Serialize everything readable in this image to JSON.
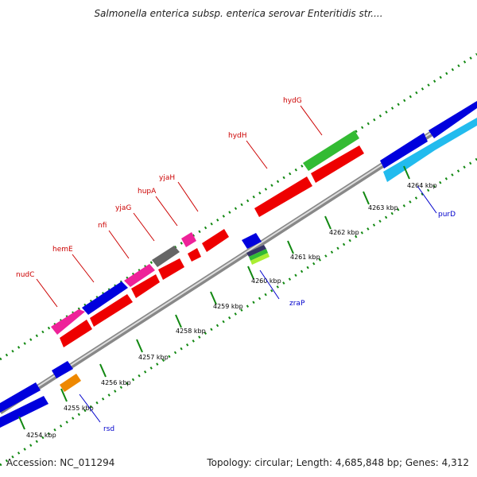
{
  "title": "Salmonella enterica subsp. enterica serovar Enteritidis str....",
  "footer": {
    "accession": "Accession: NC_011294",
    "topology": "Topology: circular; Length: 4,685,848 bp; Genes: 4,312"
  },
  "colors": {
    "forward_red": "#ee0000",
    "dark_blue": "#0000dd",
    "light_blue": "#22bbee",
    "magenta": "#ee2299",
    "green": "#33bb33",
    "orange": "#ee8800",
    "gray": "#666666",
    "tick_green": "#118811",
    "label_red": "#cc0000",
    "label_blue": "#0000cc"
  },
  "kbp_labels": [
    "4254 kbp",
    "4255 kbp",
    "4256 kbp",
    "4257 kbp",
    "4258 kbp",
    "4259 kbp",
    "4260 kbp",
    "4261 kbp",
    "4262 kbp",
    "4263 kbp",
    "4264 kbp"
  ],
  "gene_labels": [
    "nudC",
    "hemE",
    "nfi",
    "yjaG",
    "hupA",
    "yjaH",
    "hydH",
    "hydG",
    "rsd",
    "zraP",
    "purD"
  ]
}
